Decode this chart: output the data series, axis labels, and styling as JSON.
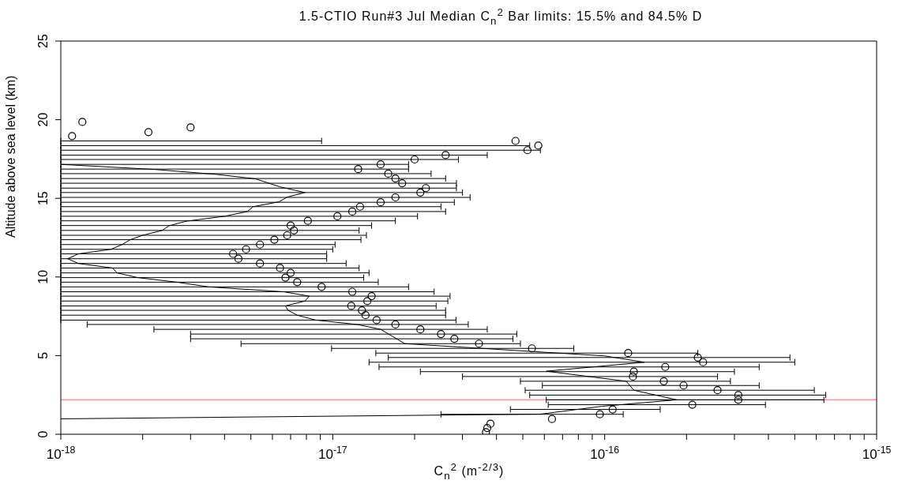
{
  "chart_data": {
    "type": "scatter",
    "title": "1.5-CTIO Run#3 Jul Median C$_{n}$$^{2}$  Bar limits:  15.5% and  84.5%  D",
    "xlabel": "C$_{n}$$^{2}$ (m$^{-2/3}$)",
    "ylabel": "Altitude above sea level (km)",
    "log": "x",
    "xlim": [
      1e-18,
      1e-15
    ],
    "xticks": [
      {
        "value": 1e-18,
        "label": "10$^{-18}$"
      },
      {
        "value": 2e-18,
        "label": null
      },
      {
        "value": 3e-18,
        "label": null
      },
      {
        "value": 4e-18,
        "label": null
      },
      {
        "value": 5e-18,
        "label": null
      },
      {
        "value": 6e-18,
        "label": null
      },
      {
        "value": 7e-18,
        "label": null
      },
      {
        "value": 8e-18,
        "label": null
      },
      {
        "value": 9e-18,
        "label": null
      },
      {
        "value": 1e-17,
        "label": "10$^{-17}$"
      },
      {
        "value": 2e-17,
        "label": null
      },
      {
        "value": 3e-17,
        "label": null
      },
      {
        "value": 4e-17,
        "label": null
      },
      {
        "value": 5e-17,
        "label": null
      },
      {
        "value": 6e-17,
        "label": null
      },
      {
        "value": 7e-17,
        "label": null
      },
      {
        "value": 8e-17,
        "label": null
      },
      {
        "value": 9e-17,
        "label": null
      },
      {
        "value": 1e-16,
        "label": "10$^{-16}$"
      },
      {
        "value": 2e-16,
        "label": null
      },
      {
        "value": 3e-16,
        "label": null
      },
      {
        "value": 4e-16,
        "label": null
      },
      {
        "value": 5e-16,
        "label": null
      },
      {
        "value": 6e-16,
        "label": null
      },
      {
        "value": 7e-16,
        "label": null
      },
      {
        "value": 8e-16,
        "label": null
      },
      {
        "value": 9e-16,
        "label": null
      },
      {
        "value": 1e-15,
        "label": "10$^{-15}$"
      }
    ],
    "ylim": [
      0,
      25
    ],
    "yticks": [
      0,
      5,
      10,
      15,
      20,
      25
    ],
    "series": [
      {
        "type": "scatter",
        "color": "#000000",
        "marker": "circle",
        "x": [
          1.2e-18,
          1.1e-18,
          2.1e-18,
          3e-18,
          4.7e-17,
          5.7e-17,
          5.2e-17,
          2.6e-17,
          2e-17,
          1.5e-17,
          1.24e-17,
          1.6e-17,
          1.7e-17,
          1.8e-17,
          2.2e-17,
          2.1e-17,
          1.7e-17,
          1.5e-17,
          1.26e-17,
          1.18e-17,
          1.04e-17,
          8.1e-18,
          7e-18,
          7.2e-18,
          6.8e-18,
          6.1e-18,
          5.4e-18,
          4.8e-18,
          4.3e-18,
          4.5e-18,
          5.4e-18,
          6.4e-18,
          7e-18,
          6.7e-18,
          7.4e-18,
          9.1e-18,
          1.18e-17,
          1.39e-17,
          1.34e-17,
          1.17e-17,
          1.28e-17,
          1.32e-17,
          1.45e-17,
          1.7e-17,
          2.1e-17,
          2.5e-17,
          2.8e-17,
          3.45e-17,
          5.4e-17,
          1.22e-16,
          2.2e-16,
          2.3e-16,
          1.67e-16,
          1.28e-16,
          1.27e-16,
          1.65e-16,
          1.95e-16,
          2.6e-16,
          3.1e-16,
          3.1e-16,
          2.1e-16,
          1.07e-16,
          9.6e-17,
          6.4e-17,
          3.8e-17,
          3.7e-17,
          3.66e-17
        ],
        "values": [
          19.86,
          18.96,
          19.21,
          19.51,
          18.65,
          18.35,
          18.06,
          17.75,
          17.47,
          17.16,
          16.86,
          16.57,
          16.26,
          15.96,
          15.65,
          15.37,
          15.06,
          14.75,
          14.47,
          14.16,
          13.86,
          13.57,
          13.27,
          12.96,
          12.65,
          12.37,
          12.06,
          11.76,
          11.47,
          11.16,
          10.86,
          10.57,
          10.26,
          9.96,
          9.67,
          9.37,
          9.06,
          8.78,
          8.47,
          8.16,
          7.88,
          7.57,
          7.26,
          6.98,
          6.67,
          6.37,
          6.07,
          5.76,
          5.46,
          5.16,
          4.88,
          4.58,
          4.28,
          3.98,
          3.67,
          3.37,
          3.1,
          2.8,
          2.49,
          2.19,
          1.88,
          1.58,
          1.27,
          0.97,
          0.67,
          0.4,
          0.13
        ],
        "xerrors": [
          null,
          null,
          null,
          null,
          [
            1e-18,
            9.1e-18
          ],
          [
            1e-18,
            5.3e-17
          ],
          [
            1e-18,
            5.8e-17
          ],
          [
            1e-18,
            3.7e-17
          ],
          [
            1e-18,
            2.9e-17
          ],
          [
            1e-18,
            1.9e-17
          ],
          [
            1e-18,
            1.9e-17
          ],
          [
            1e-18,
            2.3e-17
          ],
          [
            1e-18,
            2.6e-17
          ],
          [
            1e-18,
            2.85e-17
          ],
          [
            1e-18,
            2.85e-17
          ],
          [
            1e-18,
            3e-17
          ],
          [
            1e-18,
            3.2e-17
          ],
          [
            1e-18,
            2.8e-17
          ],
          [
            1e-18,
            2.5e-17
          ],
          [
            1e-18,
            2.6e-17
          ],
          [
            1e-18,
            2.05e-17
          ],
          [
            1e-18,
            1.7e-17
          ],
          [
            1e-18,
            1.39e-17
          ],
          [
            1e-18,
            1.25e-17
          ],
          [
            1e-18,
            1.33e-17
          ],
          [
            1e-18,
            1.27e-17
          ],
          [
            1e-18,
            1.02e-17
          ],
          [
            1e-18,
            1e-17
          ],
          [
            1e-18,
            9.5e-18
          ],
          [
            1e-18,
            9.5e-18
          ],
          [
            1e-18,
            1.12e-17
          ],
          [
            1e-18,
            1.25e-17
          ],
          [
            1e-18,
            1.36e-17
          ],
          [
            1e-18,
            1.3e-17
          ],
          [
            1e-18,
            1.47e-17
          ],
          [
            1e-18,
            1.9e-17
          ],
          [
            1e-18,
            2.36e-17
          ],
          [
            1e-18,
            2.7e-17
          ],
          [
            1e-18,
            2.65e-17
          ],
          [
            1e-18,
            2.4e-17
          ],
          [
            1e-18,
            2.6e-17
          ],
          [
            1e-18,
            2.6e-17
          ],
          [
            1e-18,
            2.84e-17
          ],
          [
            1.25e-18,
            3.15e-17
          ],
          [
            2.2e-18,
            3.7e-17
          ],
          [
            3e-18,
            4.75e-17
          ],
          [
            3e-18,
            4.6e-17
          ],
          [
            4.6e-18,
            4.9e-17
          ],
          [
            9.9e-18,
            7.7e-17
          ],
          [
            1.44e-17,
            2.2e-16
          ],
          [
            1.6e-17,
            4.8e-16
          ],
          [
            1.36e-17,
            5e-16
          ],
          [
            1.48e-17,
            3.7e-16
          ],
          [
            2.1e-17,
            3e-16
          ],
          [
            3e-17,
            2.6e-16
          ],
          [
            4.9e-17,
            2.9e-16
          ],
          [
            5.9e-17,
            3.7e-16
          ],
          [
            5.1e-17,
            5.9e-16
          ],
          [
            5.3e-17,
            6.5e-16
          ],
          [
            6.1e-17,
            6.4e-16
          ],
          [
            6.2e-17,
            3.9e-16
          ],
          [
            4.5e-17,
            1.6e-16
          ],
          [
            2.5e-17,
            1.17e-16
          ],
          null,
          null,
          null,
          null
        ]
      },
      {
        "type": "line",
        "color": "#000000",
        "marker": "none",
        "x": [
          1e-18,
          2.2e-18,
          3.7e-18,
          5.2e-18,
          6.4e-18,
          7.9e-18,
          6.8e-18,
          6.35e-18,
          5.1e-18,
          4.85e-18,
          4e-18,
          2.9e-18,
          2.5e-18,
          2.36e-18,
          2e-18,
          1.8e-18,
          1.68e-18,
          1.53e-18,
          1.16e-18,
          1.06e-18,
          1.16e-18,
          1.55e-18,
          1.61e-18,
          1.92e-18,
          2.67e-18,
          3.5e-18,
          6.6e-18,
          8.2e-18,
          7.9e-18,
          6.7e-18,
          6.85e-18,
          7.4e-18,
          8.65e-18,
          1.23e-17,
          1.5e-17,
          1.84e-17,
          1e-16,
          1.4e-16,
          6.1e-17,
          1.2e-16,
          1.28e-16,
          1.84e-16,
          9.8e-17,
          5.8e-17,
          1e-18
        ],
        "values": [
          17.16,
          16.84,
          16.53,
          16.24,
          15.73,
          15.37,
          15.08,
          14.78,
          14.47,
          14.16,
          13.86,
          13.55,
          13.26,
          12.96,
          12.65,
          12.37,
          12.06,
          11.76,
          11.47,
          11.16,
          10.86,
          10.57,
          10.26,
          9.96,
          9.67,
          9.37,
          9.06,
          8.78,
          8.47,
          8.16,
          7.88,
          7.57,
          7.26,
          6.98,
          6.67,
          5.76,
          4.98,
          4.58,
          4.01,
          3.37,
          2.8,
          2.19,
          1.78,
          1.28,
          0.98
        ]
      }
    ],
    "ref_lines": [
      {
        "axis": "y",
        "value": 2.2,
        "color": "#ff6666"
      }
    ]
  }
}
